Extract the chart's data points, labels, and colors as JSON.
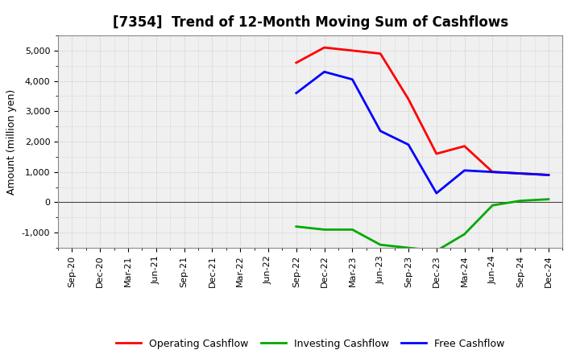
{
  "title": "[7354]  Trend of 12-Month Moving Sum of Cashflows",
  "ylabel": "Amount (million yen)",
  "background_color": "#ffffff",
  "plot_bg_color": "#f0f0f0",
  "grid_color": "#bbbbbb",
  "x_labels": [
    "Sep-20",
    "Dec-20",
    "Mar-21",
    "Jun-21",
    "Sep-21",
    "Dec-21",
    "Mar-22",
    "Jun-22",
    "Sep-22",
    "Dec-22",
    "Mar-23",
    "Jun-23",
    "Sep-23",
    "Dec-23",
    "Mar-24",
    "Jun-24",
    "Sep-24",
    "Dec-24"
  ],
  "operating_x": [
    8,
    9,
    10,
    11,
    12,
    13,
    14,
    15,
    16,
    17
  ],
  "operating_y": [
    4600,
    5100,
    5000,
    4900,
    3400,
    1600,
    1850,
    1000,
    950,
    900
  ],
  "investing_x": [
    8,
    9,
    10,
    11,
    12,
    13,
    14,
    15,
    16,
    17
  ],
  "investing_y": [
    -800,
    -900,
    -900,
    -1400,
    -1500,
    -1600,
    -1050,
    -100,
    50,
    100
  ],
  "free_x": [
    8,
    9,
    10,
    11,
    12,
    13,
    14,
    15,
    16,
    17
  ],
  "free_y": [
    3600,
    4300,
    4050,
    2350,
    1900,
    300,
    1050,
    1000,
    950,
    900
  ],
  "ylim": [
    -1500,
    5500
  ],
  "yticks": [
    -1000,
    0,
    1000,
    2000,
    3000,
    4000,
    5000
  ],
  "legend_labels": [
    "Operating Cashflow",
    "Investing Cashflow",
    "Free Cashflow"
  ],
  "line_colors": [
    "#ff0000",
    "#00aa00",
    "#0000ff"
  ],
  "line_width": 2.0,
  "title_fontsize": 12,
  "ylabel_fontsize": 9,
  "tick_fontsize": 8
}
